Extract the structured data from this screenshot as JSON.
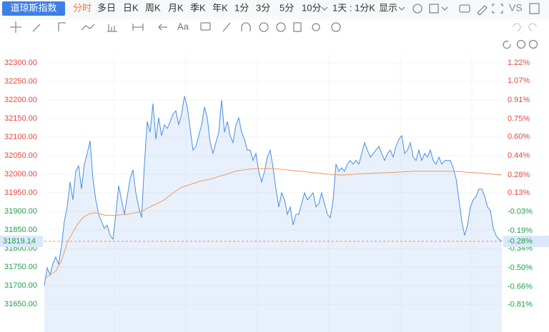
{
  "toolbar": {
    "symbol": "道琼斯指数",
    "tabs": [
      "分时",
      "多日",
      "日K",
      "周K",
      "月K",
      "季K",
      "年K",
      "1分",
      "3分",
      "5分",
      "10分"
    ],
    "period": "1天 : 1分K",
    "display": "显示",
    "compare": "VS",
    "text_tool": "Aa"
  },
  "chart_data": {
    "type": "line",
    "series": [
      {
        "name": "price",
        "color": "#4a8fe0",
        "values": [
          31700,
          31748,
          31729,
          31758,
          31777,
          31758,
          31806,
          31873,
          31912,
          31979,
          31931,
          32008,
          32023,
          31960,
          32027,
          32056,
          32090,
          31988,
          31931,
          31892,
          31873,
          31854,
          31863,
          31835,
          31825,
          31892,
          31969,
          31931,
          31892,
          31940,
          31988,
          32012,
          31950,
          31912,
          31883,
          32027,
          32142,
          32113,
          32190,
          32094,
          32152,
          32104,
          32133,
          32123,
          32142,
          32162,
          32171,
          32133,
          32162,
          32210,
          32181,
          32123,
          32065,
          32075,
          32104,
          32133,
          32181,
          32152,
          32085,
          32056,
          32085,
          32113,
          32200,
          32113,
          32142,
          32104,
          32085,
          32133,
          32152,
          32113,
          32094,
          32065,
          32065,
          32037,
          32056,
          32008,
          31979,
          32008,
          32046,
          32065,
          32017,
          31960,
          31912,
          31950,
          31931,
          31892,
          31912,
          31863,
          31892,
          31892,
          31921,
          31950,
          31931,
          31940,
          31950,
          31912,
          31921,
          31950,
          31921,
          31892,
          31883,
          31931,
          32027,
          32008,
          32017,
          32008,
          32027,
          32037,
          32027,
          32037,
          32027,
          32056,
          32085,
          32065,
          32046,
          32056,
          32065,
          32075,
          32056,
          32037,
          32056,
          32065,
          32046,
          32075,
          32094,
          32104,
          32056,
          32065,
          32085,
          32046,
          32037,
          32065,
          32037,
          32056,
          32046,
          32065,
          32037,
          32027,
          32046,
          32027,
          32037,
          32037,
          32037,
          32017,
          31988,
          31931,
          31873,
          31835,
          31863,
          31912,
          31931,
          31940,
          31960,
          31960,
          31940,
          31912,
          31902,
          31854,
          31835,
          31825,
          31819.14
        ]
      },
      {
        "name": "average",
        "color": "#f0a070",
        "values": [
          31719,
          31724,
          31729,
          31734,
          31739,
          31753,
          31767,
          31791,
          31815,
          31830,
          31844,
          31857,
          31869,
          31878,
          31886,
          31890,
          31894,
          31895,
          31896,
          31894,
          31892,
          31890,
          31889,
          31889,
          31889,
          31889,
          31890,
          31891,
          31891,
          31892,
          31893,
          31895,
          31896,
          31898,
          31901,
          31904,
          31908,
          31912,
          31916,
          31919,
          31923,
          31927,
          31931,
          31937,
          31943,
          31949,
          31955,
          31960,
          31964,
          31967,
          31970,
          31972,
          31975,
          31977,
          31980,
          31982,
          31984,
          31985,
          31987,
          31989,
          31991,
          31994,
          31996,
          31998,
          32001,
          32003,
          32006,
          32008,
          32010,
          32011,
          32012,
          32013,
          32014,
          32014,
          32015,
          32015,
          32015,
          32015,
          32015,
          32015,
          32015,
          32014,
          32014,
          32013,
          32012,
          32012,
          32011,
          32010,
          32009,
          32008,
          32008,
          32007,
          32006,
          32005,
          32004,
          32004,
          32003,
          32002,
          32001,
          32000,
          32000,
          31999,
          31999,
          31998,
          31998,
          31998,
          31999,
          31999,
          32000,
          32000,
          32001,
          32001,
          32002,
          32002,
          32002,
          32003,
          32003,
          32003,
          32004,
          32004,
          32004,
          32005,
          32005,
          32005,
          32006,
          32006,
          32007,
          32007,
          32007,
          32008,
          32008,
          32008,
          32008,
          32008,
          32008,
          32008,
          32008,
          32008,
          32008,
          32008,
          32008,
          32008,
          32008,
          32008,
          32008,
          32007,
          32007,
          32006,
          32005,
          32005,
          32004,
          32004,
          32003,
          32003,
          32002,
          32001,
          32001,
          32000,
          31999,
          31999,
          31998
        ]
      }
    ],
    "ylim": [
      31575,
      32325
    ],
    "yticks": [
      {
        "value": 32300,
        "label": "32300.00"
      },
      {
        "value": 32250,
        "label": "32250.00"
      },
      {
        "value": 32200,
        "label": "32200.00"
      },
      {
        "value": 32150,
        "label": "32150.00"
      },
      {
        "value": 32100,
        "label": "32100.00"
      },
      {
        "value": 32050,
        "label": "32050.00"
      },
      {
        "value": 32000,
        "label": "32000.00"
      },
      {
        "value": 31950,
        "label": "31950.00"
      },
      {
        "value": 31900,
        "label": "31900.00"
      },
      {
        "value": 31850,
        "label": "31850.00"
      },
      {
        "value": 31800,
        "label": "31800.00"
      },
      {
        "value": 31750,
        "label": "31750.00"
      },
      {
        "value": 31700,
        "label": "31700.00"
      },
      {
        "value": 31650,
        "label": "31650.00"
      }
    ],
    "y2lim": [
      -1.04,
      1.3
    ],
    "y2ticks": [
      {
        "value": 1.22,
        "label": "1.22%"
      },
      {
        "value": 1.07,
        "label": "1.07%"
      },
      {
        "value": 0.91,
        "label": "0.91%"
      },
      {
        "value": 0.75,
        "label": "0.75%"
      },
      {
        "value": 0.6,
        "label": "0.60%"
      },
      {
        "value": 0.44,
        "label": "0.44%"
      },
      {
        "value": 0.28,
        "label": "0.28%"
      },
      {
        "value": 0.13,
        "label": "0.13%"
      },
      {
        "value": -0.03,
        "label": "-0.03%"
      },
      {
        "value": -0.19,
        "label": "-0.19%"
      },
      {
        "value": -0.34,
        "label": "-0.34%"
      },
      {
        "value": -0.5,
        "label": "-0.50%"
      },
      {
        "value": -0.66,
        "label": "-0.66%"
      },
      {
        "value": -0.81,
        "label": "-0.81%"
      }
    ],
    "last_change_label": "-0.28%",
    "up_color": "#e8463c",
    "down_color": "#20a048",
    "grid": true
  }
}
